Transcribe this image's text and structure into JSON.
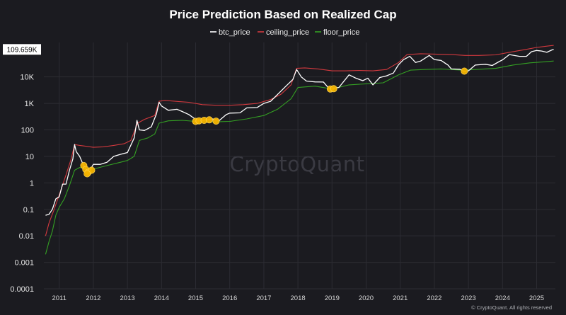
{
  "chart_data": {
    "type": "line",
    "title": "Price Prediction Based on Realized Cap",
    "y_scale": "log",
    "ylim": [
      0.0001,
      200000
    ],
    "xlim": [
      2010.55,
      2025.55
    ],
    "y_ticks": [
      {
        "value": 0.0001,
        "label": "0.0001"
      },
      {
        "value": 0.001,
        "label": "0.001"
      },
      {
        "value": 0.01,
        "label": "0.01"
      },
      {
        "value": 0.1,
        "label": "0.1"
      },
      {
        "value": 1,
        "label": "1"
      },
      {
        "value": 10,
        "label": "10"
      },
      {
        "value": 100,
        "label": "100"
      },
      {
        "value": 1000,
        "label": "1K"
      },
      {
        "value": 10000,
        "label": "10K"
      }
    ],
    "x_ticks": [
      {
        "value": 2011,
        "label": "2011"
      },
      {
        "value": 2012,
        "label": "2012"
      },
      {
        "value": 2013,
        "label": "2013"
      },
      {
        "value": 2014,
        "label": "2014"
      },
      {
        "value": 2015,
        "label": "2015"
      },
      {
        "value": 2016,
        "label": "2016"
      },
      {
        "value": 2017,
        "label": "2017"
      },
      {
        "value": 2018,
        "label": "2018"
      },
      {
        "value": 2019,
        "label": "2019"
      },
      {
        "value": 2020,
        "label": "2020"
      },
      {
        "value": 2021,
        "label": "2021"
      },
      {
        "value": 2022,
        "label": "2022"
      },
      {
        "value": 2023,
        "label": "2023"
      },
      {
        "value": 2024,
        "label": "2024"
      },
      {
        "value": 2025,
        "label": "2025"
      }
    ],
    "current_value": {
      "value": 109659,
      "label": "109.659K"
    },
    "grid": true,
    "legend": "top-center",
    "series": [
      {
        "name": "btc_price",
        "color": "#ffffff",
        "points": [
          [
            2010.6,
            0.06
          ],
          [
            2010.7,
            0.065
          ],
          [
            2010.8,
            0.1
          ],
          [
            2010.9,
            0.25
          ],
          [
            2011.0,
            0.3
          ],
          [
            2011.1,
            0.9
          ],
          [
            2011.2,
            0.9
          ],
          [
            2011.3,
            3
          ],
          [
            2011.4,
            8
          ],
          [
            2011.45,
            28
          ],
          [
            2011.5,
            15
          ],
          [
            2011.6,
            10
          ],
          [
            2011.7,
            5
          ],
          [
            2011.8,
            3
          ],
          [
            2011.9,
            3
          ],
          [
            2012.0,
            5
          ],
          [
            2012.2,
            5
          ],
          [
            2012.4,
            6
          ],
          [
            2012.6,
            10
          ],
          [
            2012.8,
            12
          ],
          [
            2013.0,
            14
          ],
          [
            2013.2,
            50
          ],
          [
            2013.28,
            230
          ],
          [
            2013.35,
            100
          ],
          [
            2013.5,
            95
          ],
          [
            2013.7,
            130
          ],
          [
            2013.85,
            400
          ],
          [
            2013.93,
            1100
          ],
          [
            2014.0,
            800
          ],
          [
            2014.2,
            550
          ],
          [
            2014.45,
            600
          ],
          [
            2014.6,
            500
          ],
          [
            2014.8,
            380
          ],
          [
            2015.0,
            250
          ],
          [
            2015.2,
            230
          ],
          [
            2015.5,
            260
          ],
          [
            2015.7,
            230
          ],
          [
            2015.9,
            380
          ],
          [
            2016.0,
            430
          ],
          [
            2016.3,
            440
          ],
          [
            2016.5,
            680
          ],
          [
            2016.8,
            700
          ],
          [
            2017.0,
            1000
          ],
          [
            2017.2,
            1200
          ],
          [
            2017.45,
            2500
          ],
          [
            2017.65,
            4500
          ],
          [
            2017.85,
            8000
          ],
          [
            2017.96,
            19000
          ],
          [
            2018.1,
            10000
          ],
          [
            2018.25,
            7000
          ],
          [
            2018.5,
            6500
          ],
          [
            2018.75,
            6400
          ],
          [
            2018.9,
            3800
          ],
          [
            2019.0,
            3700
          ],
          [
            2019.2,
            4000
          ],
          [
            2019.5,
            12000
          ],
          [
            2019.7,
            9000
          ],
          [
            2019.9,
            7200
          ],
          [
            2020.05,
            9000
          ],
          [
            2020.2,
            5000
          ],
          [
            2020.4,
            9500
          ],
          [
            2020.6,
            11000
          ],
          [
            2020.8,
            14000
          ],
          [
            2020.95,
            29000
          ],
          [
            2021.1,
            45000
          ],
          [
            2021.28,
            60000
          ],
          [
            2021.45,
            35000
          ],
          [
            2021.6,
            40000
          ],
          [
            2021.85,
            65000
          ],
          [
            2022.0,
            45000
          ],
          [
            2022.2,
            42000
          ],
          [
            2022.4,
            28000
          ],
          [
            2022.5,
            20000
          ],
          [
            2022.75,
            19500
          ],
          [
            2022.87,
            16000
          ],
          [
            2023.0,
            17000
          ],
          [
            2023.2,
            28000
          ],
          [
            2023.5,
            30000
          ],
          [
            2023.7,
            27000
          ],
          [
            2023.9,
            38000
          ],
          [
            2024.0,
            44000
          ],
          [
            2024.2,
            70000
          ],
          [
            2024.5,
            60000
          ],
          [
            2024.7,
            60000
          ],
          [
            2024.85,
            90000
          ],
          [
            2025.0,
            100000
          ],
          [
            2025.15,
            95000
          ],
          [
            2025.3,
            85000
          ],
          [
            2025.45,
            105000
          ],
          [
            2025.5,
            109659
          ]
        ]
      },
      {
        "name": "ceiling_price",
        "color": "#d2393e",
        "points": [
          [
            2010.6,
            0.01
          ],
          [
            2010.7,
            0.03
          ],
          [
            2010.85,
            0.1
          ],
          [
            2011.0,
            0.35
          ],
          [
            2011.2,
            2
          ],
          [
            2011.35,
            8
          ],
          [
            2011.45,
            28
          ],
          [
            2011.6,
            26
          ],
          [
            2011.8,
            24
          ],
          [
            2012.0,
            22
          ],
          [
            2012.3,
            23
          ],
          [
            2012.6,
            26
          ],
          [
            2012.9,
            30
          ],
          [
            2013.1,
            40
          ],
          [
            2013.3,
            180
          ],
          [
            2013.5,
            250
          ],
          [
            2013.8,
            350
          ],
          [
            2013.93,
            1200
          ],
          [
            2014.1,
            1300
          ],
          [
            2014.4,
            1200
          ],
          [
            2014.8,
            1100
          ],
          [
            2015.2,
            900
          ],
          [
            2015.6,
            850
          ],
          [
            2016.0,
            850
          ],
          [
            2016.4,
            900
          ],
          [
            2016.8,
            1000
          ],
          [
            2017.2,
            1400
          ],
          [
            2017.5,
            2200
          ],
          [
            2017.8,
            5000
          ],
          [
            2017.96,
            21000
          ],
          [
            2018.2,
            22000
          ],
          [
            2018.6,
            20000
          ],
          [
            2019.0,
            17000
          ],
          [
            2019.4,
            17000
          ],
          [
            2019.8,
            17500
          ],
          [
            2020.2,
            17000
          ],
          [
            2020.6,
            19000
          ],
          [
            2020.95,
            35000
          ],
          [
            2021.2,
            70000
          ],
          [
            2021.6,
            75000
          ],
          [
            2022.0,
            73000
          ],
          [
            2022.5,
            70000
          ],
          [
            2022.9,
            65000
          ],
          [
            2023.3,
            65000
          ],
          [
            2023.8,
            68000
          ],
          [
            2024.2,
            85000
          ],
          [
            2024.7,
            110000
          ],
          [
            2025.0,
            130000
          ],
          [
            2025.3,
            145000
          ],
          [
            2025.5,
            155000
          ]
        ]
      },
      {
        "name": "floor_price",
        "color": "#34a023",
        "points": [
          [
            2010.6,
            0.002
          ],
          [
            2010.7,
            0.006
          ],
          [
            2010.8,
            0.015
          ],
          [
            2010.9,
            0.06
          ],
          [
            2011.0,
            0.12
          ],
          [
            2011.15,
            0.25
          ],
          [
            2011.3,
            0.8
          ],
          [
            2011.45,
            3
          ],
          [
            2011.6,
            3.8
          ],
          [
            2011.8,
            3.5
          ],
          [
            2012.0,
            3.3
          ],
          [
            2012.4,
            4.5
          ],
          [
            2012.8,
            6
          ],
          [
            2013.0,
            7
          ],
          [
            2013.2,
            10
          ],
          [
            2013.35,
            40
          ],
          [
            2013.6,
            50
          ],
          [
            2013.8,
            70
          ],
          [
            2013.93,
            180
          ],
          [
            2014.2,
            220
          ],
          [
            2014.6,
            230
          ],
          [
            2015.0,
            210
          ],
          [
            2015.5,
            200
          ],
          [
            2016.0,
            210
          ],
          [
            2016.5,
            260
          ],
          [
            2017.0,
            350
          ],
          [
            2017.4,
            600
          ],
          [
            2017.8,
            1500
          ],
          [
            2018.0,
            4000
          ],
          [
            2018.5,
            4500
          ],
          [
            2019.0,
            3500
          ],
          [
            2019.5,
            5000
          ],
          [
            2020.0,
            5500
          ],
          [
            2020.5,
            6000
          ],
          [
            2020.95,
            12000
          ],
          [
            2021.3,
            18000
          ],
          [
            2021.7,
            19000
          ],
          [
            2022.2,
            20000
          ],
          [
            2022.8,
            18000
          ],
          [
            2023.2,
            19000
          ],
          [
            2023.8,
            21000
          ],
          [
            2024.3,
            28000
          ],
          [
            2024.8,
            34000
          ],
          [
            2025.2,
            37000
          ],
          [
            2025.5,
            40000
          ]
        ]
      }
    ],
    "markers": [
      [
        2011.72,
        4.5
      ],
      [
        2011.78,
        3.2
      ],
      [
        2011.85,
        2.5
      ],
      [
        2011.95,
        3.0
      ],
      [
        2011.82,
        2.2
      ],
      [
        2015.0,
        210
      ],
      [
        2015.1,
        220
      ],
      [
        2015.25,
        230
      ],
      [
        2015.4,
        240
      ],
      [
        2015.6,
        215
      ],
      [
        2018.95,
        3500
      ],
      [
        2019.05,
        3600
      ],
      [
        2022.88,
        16500
      ]
    ]
  },
  "legend": {
    "items": [
      {
        "label": "btc_price",
        "color": "#ffffff"
      },
      {
        "label": "ceiling_price",
        "color": "#d2393e"
      },
      {
        "label": "floor_price",
        "color": "#34a023"
      }
    ]
  },
  "watermark": "CryptoQuant",
  "credit": "© CryptoQuant. All rights reserved",
  "colors": {
    "background": "#1b1b20",
    "grid": "#2c2c33",
    "marker": "#f5b400"
  }
}
